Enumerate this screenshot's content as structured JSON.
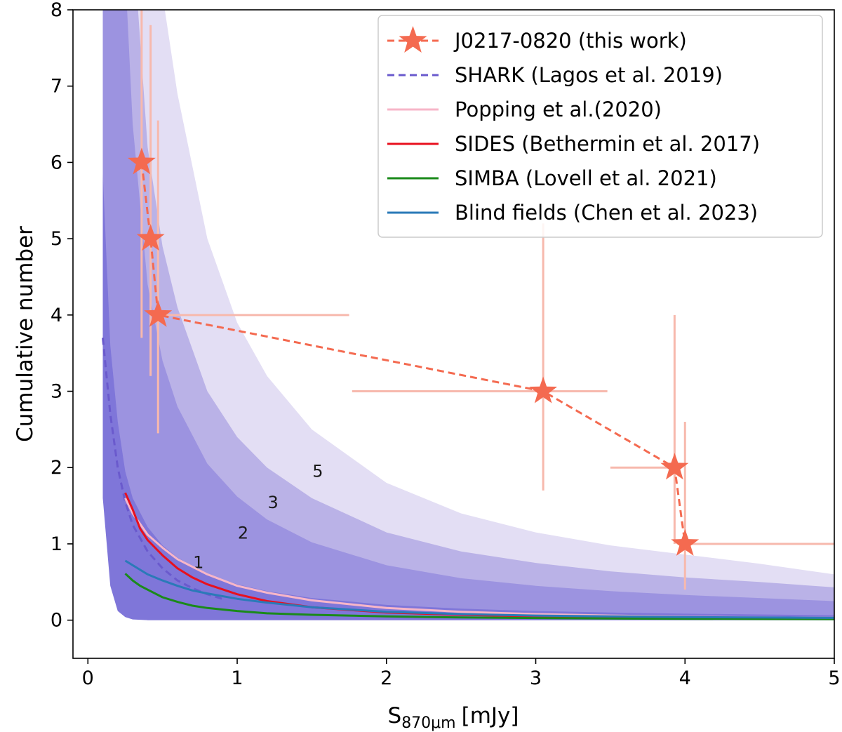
{
  "chart_data": {
    "type": "line",
    "title": "",
    "xlabel": "S",
    "xlabel_subscript": "870μm",
    "xlabel_unit": "[mJy]",
    "ylabel": "Cumulative number",
    "xlim": [
      -0.1,
      5.0
    ],
    "ylim": [
      -0.5,
      8.0
    ],
    "x_ticks": [
      0,
      1,
      2,
      3,
      4,
      5
    ],
    "x_tick_labels": [
      "0",
      "1",
      "2",
      "3",
      "4",
      "5"
    ],
    "y_ticks": [
      0,
      1,
      2,
      3,
      4,
      5,
      6,
      7,
      8
    ],
    "y_tick_labels": [
      "0",
      "1",
      "2",
      "3",
      "4",
      "5",
      "6",
      "7",
      "8"
    ],
    "grid": false,
    "legend_position": "top-right",
    "legend": [
      {
        "label": "J0217-0820 (this work)",
        "style": "star-dashed",
        "color": "#f46a50"
      },
      {
        "label": "SHARK (Lagos et al. 2019)",
        "style": "dashed",
        "color": "#6a5acd"
      },
      {
        "label": "Popping et al.(2020)",
        "style": "solid",
        "color": "#f7b6c8"
      },
      {
        "label": "SIDES (Bethermin et al. 2017)",
        "style": "solid",
        "color": "#e8101e"
      },
      {
        "label": "SIMBA (Lovell et al. 2021)",
        "style": "solid",
        "color": "#1a8a1a"
      },
      {
        "label": "Blind fields (Chen et al. 2023)",
        "style": "solid",
        "color": "#2a7ab8"
      }
    ],
    "observed": {
      "name": "J0217-0820 (this work)",
      "color": "#f46a50",
      "errorbar_color": "#f7b9ad",
      "x": [
        0.36,
        0.42,
        0.47,
        3.05,
        3.93,
        4.0
      ],
      "y": [
        6,
        5,
        4,
        3,
        2,
        1
      ],
      "x_err_lo": [
        0,
        0,
        0,
        1.28,
        0.43,
        0
      ],
      "x_err_hi": [
        0,
        0,
        1.28,
        0.43,
        0,
        1.0
      ],
      "y_err_lo": [
        2.3,
        1.8,
        1.55,
        1.3,
        1.0,
        0.6
      ],
      "y_err_hi": [
        2.3,
        2.8,
        2.55,
        2.2,
        2.0,
        1.6
      ]
    },
    "bands": [
      {
        "name": "5",
        "color": "#e3def4",
        "x": [
          0.1,
          0.15,
          0.2,
          0.25,
          0.3,
          0.4,
          0.5,
          0.6,
          0.8,
          1.0,
          1.2,
          1.5,
          2.0,
          2.5,
          3.0,
          3.5,
          4.0,
          4.5,
          5.0
        ],
        "lower": [
          4.5,
          1.5,
          0.5,
          0.2,
          0.08,
          0,
          0,
          0,
          0,
          0,
          0,
          0,
          0,
          0,
          0,
          0,
          0,
          0,
          0
        ],
        "upper": [
          9,
          9,
          9,
          9,
          9,
          9,
          8.2,
          6.9,
          5.0,
          3.9,
          3.2,
          2.5,
          1.8,
          1.4,
          1.15,
          0.98,
          0.86,
          0.74,
          0.6
        ]
      },
      {
        "name": "3",
        "color": "#bab2e7",
        "x": [
          0.1,
          0.15,
          0.2,
          0.25,
          0.3,
          0.4,
          0.5,
          0.6,
          0.8,
          1.0,
          1.2,
          1.5,
          2.0,
          2.5,
          3.0,
          3.5,
          4.0,
          4.5,
          5.0
        ],
        "lower": [
          3.5,
          1.1,
          0.35,
          0.12,
          0.04,
          0,
          0,
          0,
          0,
          0,
          0,
          0,
          0,
          0,
          0,
          0,
          0,
          0,
          0
        ],
        "upper": [
          9,
          9,
          9,
          9,
          9,
          6.2,
          4.9,
          4.1,
          3.0,
          2.4,
          2.0,
          1.6,
          1.15,
          0.9,
          0.75,
          0.64,
          0.56,
          0.5,
          0.43
        ]
      },
      {
        "name": "2",
        "color": "#9c93e0",
        "x": [
          0.1,
          0.15,
          0.2,
          0.25,
          0.3,
          0.4,
          0.5,
          0.6,
          0.8,
          1.0,
          1.2,
          1.5,
          2.0,
          2.5,
          3.0,
          3.5,
          4.0,
          4.5,
          5.0
        ],
        "lower": [
          2.8,
          0.8,
          0.25,
          0.08,
          0.02,
          0,
          0,
          0,
          0,
          0,
          0,
          0,
          0,
          0,
          0,
          0,
          0,
          0,
          0
        ],
        "upper": [
          9,
          9,
          9,
          8.5,
          6.5,
          4.4,
          3.4,
          2.8,
          2.05,
          1.62,
          1.32,
          1.02,
          0.72,
          0.55,
          0.45,
          0.38,
          0.33,
          0.29,
          0.25
        ]
      },
      {
        "name": "1",
        "color": "#7f76d9",
        "x": [
          0.1,
          0.15,
          0.2,
          0.25,
          0.3,
          0.4,
          0.5,
          0.6,
          0.8,
          1.0,
          1.2,
          1.5,
          2.0,
          2.5,
          3.0,
          3.5,
          4.0,
          4.5,
          5.0
        ],
        "lower": [
          1.6,
          0.45,
          0.12,
          0.04,
          0.01,
          0,
          0,
          0,
          0,
          0,
          0,
          0,
          0,
          0,
          0,
          0,
          0,
          0,
          0
        ],
        "upper": [
          5.85,
          3.6,
          2.6,
          1.95,
          1.6,
          1.22,
          0.98,
          0.82,
          0.6,
          0.47,
          0.38,
          0.29,
          0.2,
          0.15,
          0.12,
          0.1,
          0.085,
          0.075,
          0.065
        ]
      }
    ],
    "band_labels": [
      {
        "text": "1",
        "x": 0.74,
        "y": 0.68
      },
      {
        "text": "2",
        "x": 1.04,
        "y": 1.07
      },
      {
        "text": "3",
        "x": 1.24,
        "y": 1.47
      },
      {
        "text": "5",
        "x": 1.54,
        "y": 1.88
      }
    ],
    "series": [
      {
        "name": "SHARK (Lagos et al. 2019)",
        "color": "#6a5acd",
        "dash": true,
        "x": [
          0.1,
          0.15,
          0.2,
          0.25,
          0.3,
          0.4,
          0.5,
          0.6,
          0.7,
          0.8,
          0.9
        ],
        "y": [
          3.7,
          2.7,
          2.0,
          1.55,
          1.25,
          0.9,
          0.68,
          0.52,
          0.42,
          0.34,
          0.28
        ]
      },
      {
        "name": "Popping et al.(2020)",
        "color": "#f7b6c8",
        "dash": false,
        "x": [
          0.25,
          0.3,
          0.4,
          0.5,
          0.6,
          0.8,
          1.0,
          1.2,
          1.5,
          2.0,
          2.5,
          3.0,
          3.5,
          4.0,
          4.5,
          5.0
        ],
        "y": [
          1.6,
          1.4,
          1.12,
          0.95,
          0.8,
          0.6,
          0.45,
          0.36,
          0.26,
          0.16,
          0.11,
          0.08,
          0.06,
          0.045,
          0.035,
          0.03
        ]
      },
      {
        "name": "SIDES (Bethermin et al. 2017)",
        "color": "#e8101e",
        "dash": false,
        "x": [
          0.25,
          0.3,
          0.35,
          0.4,
          0.5,
          0.6,
          0.7,
          0.8,
          1.0,
          1.2,
          1.5,
          2.0,
          2.5,
          3.0,
          3.5,
          4.0,
          4.5,
          5.0
        ],
        "y": [
          1.67,
          1.45,
          1.2,
          1.05,
          0.85,
          0.68,
          0.56,
          0.47,
          0.34,
          0.25,
          0.17,
          0.1,
          0.07,
          0.05,
          0.04,
          0.03,
          0.025,
          0.02
        ]
      },
      {
        "name": "SIMBA (Lovell et al. 2021)",
        "color": "#1a8a1a",
        "dash": false,
        "x": [
          0.25,
          0.3,
          0.35,
          0.4,
          0.5,
          0.6,
          0.7,
          0.8,
          1.0,
          1.2,
          1.5,
          2.0,
          2.5,
          3.0,
          3.5,
          4.0,
          4.5,
          5.0
        ],
        "y": [
          0.61,
          0.52,
          0.45,
          0.4,
          0.3,
          0.24,
          0.19,
          0.16,
          0.12,
          0.09,
          0.07,
          0.05,
          0.035,
          0.028,
          0.022,
          0.018,
          0.015,
          0.012
        ]
      },
      {
        "name": "Blind fields (Chen et al. 2023)",
        "color": "#2a7ab8",
        "dash": false,
        "x": [
          0.25,
          0.3,
          0.4,
          0.5,
          0.6,
          0.7,
          0.8,
          1.0,
          1.2,
          1.5,
          2.0,
          2.5,
          3.0,
          3.5,
          4.0,
          4.5,
          5.0
        ],
        "y": [
          0.78,
          0.72,
          0.6,
          0.52,
          0.45,
          0.39,
          0.35,
          0.28,
          0.23,
          0.17,
          0.11,
          0.08,
          0.06,
          0.05,
          0.04,
          0.035,
          0.03
        ]
      }
    ]
  }
}
